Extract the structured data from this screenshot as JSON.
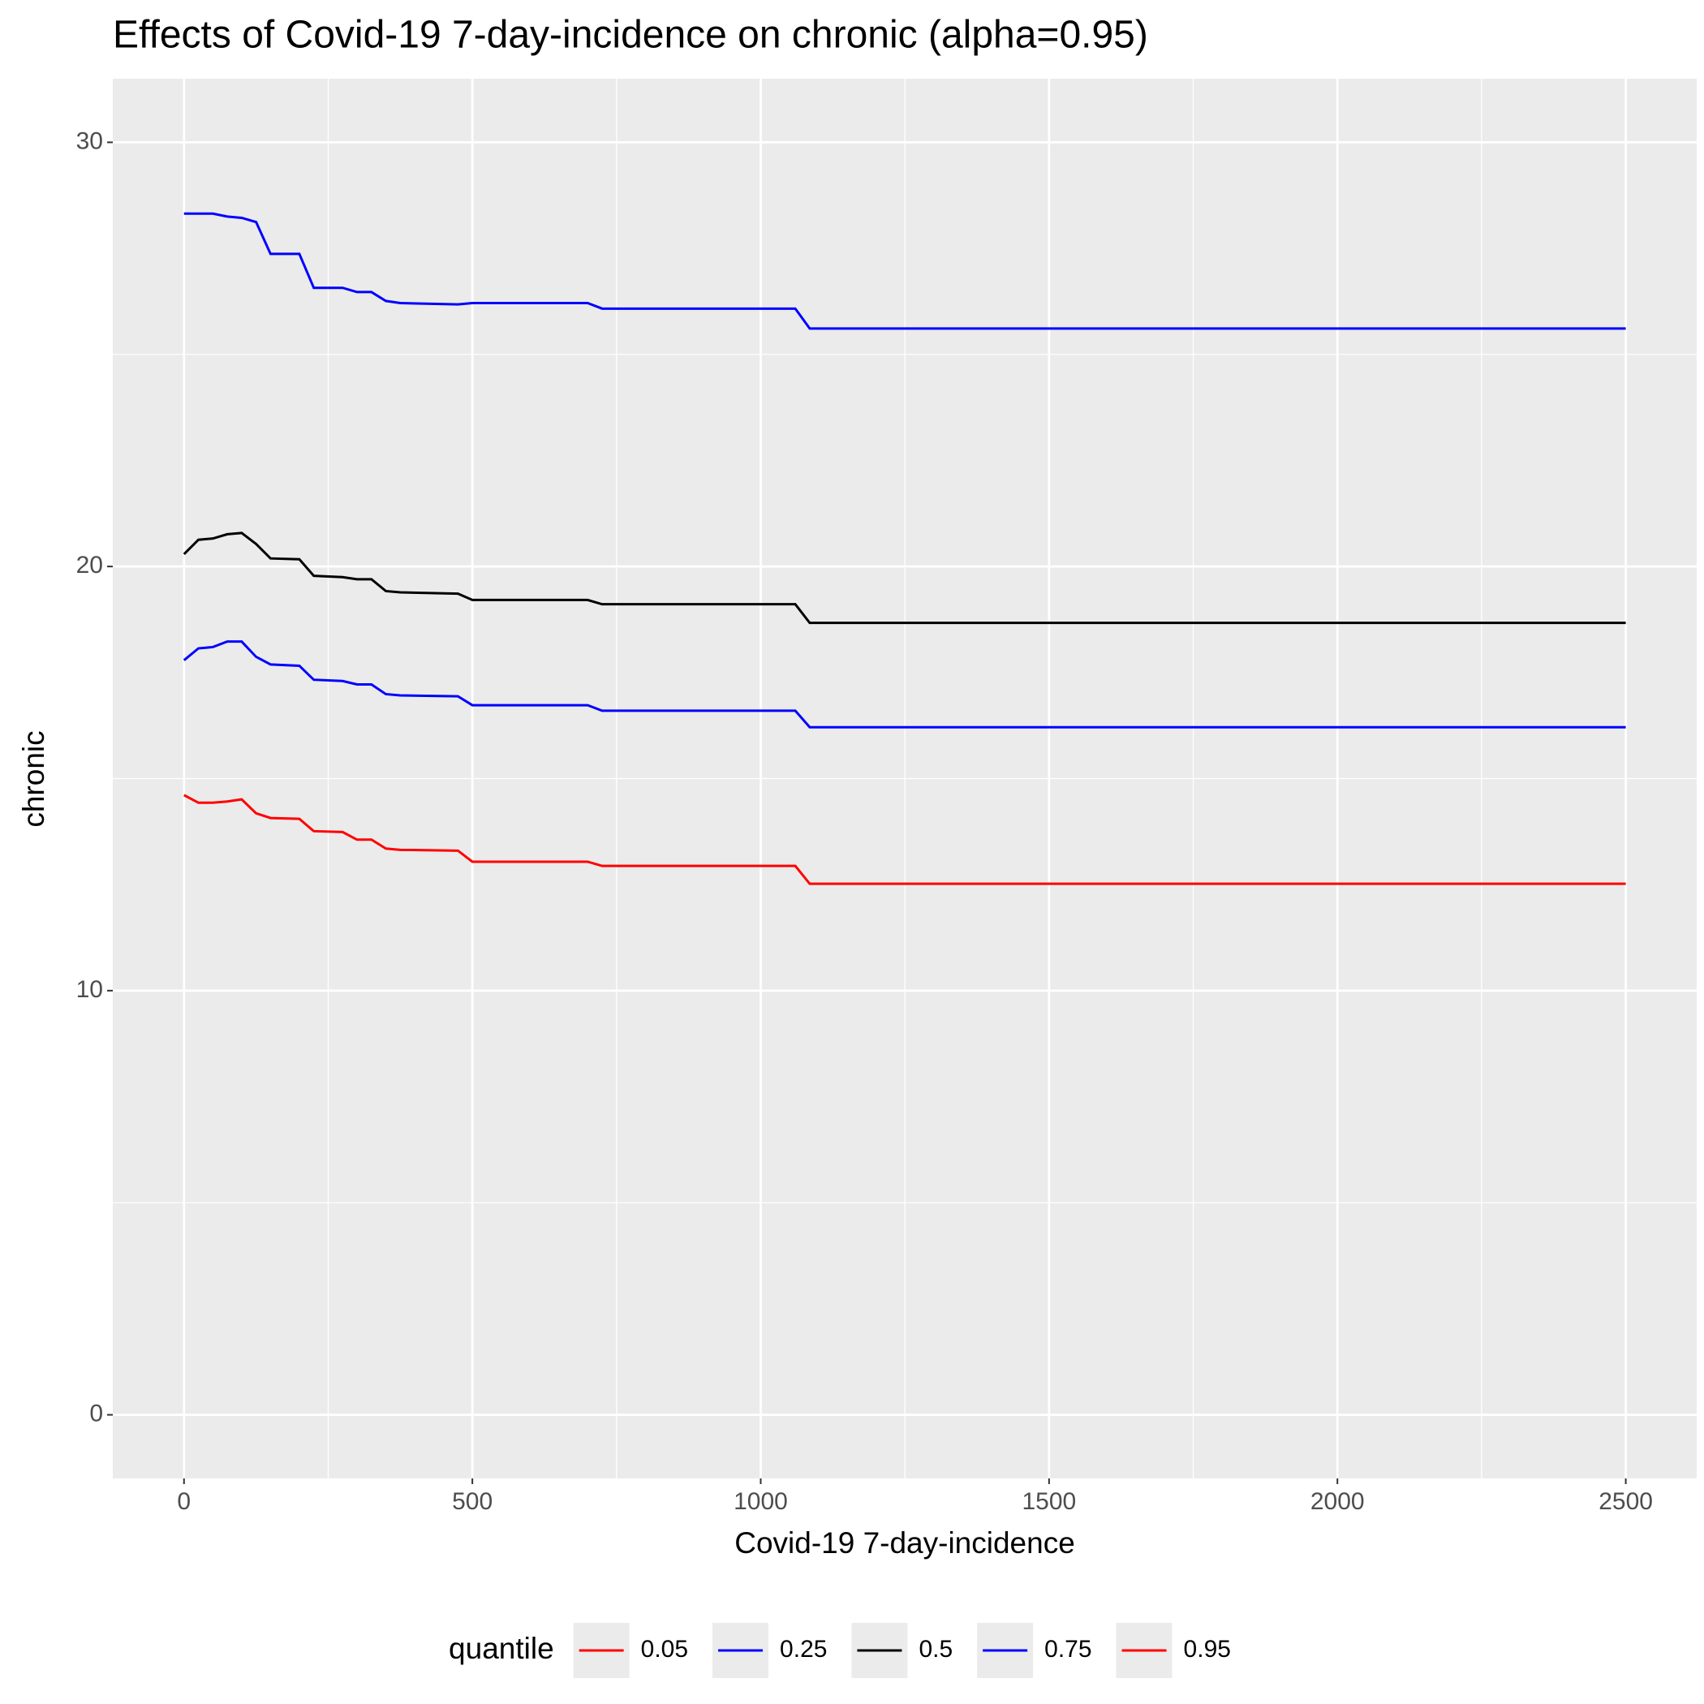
{
  "chart_data": {
    "type": "line",
    "title": "Effects of Covid-19 7-day-incidence on chronic (alpha=0.95)",
    "x_label": "Covid-19 7-day-incidence",
    "y_label": "chronic",
    "legend_title": "quantile",
    "legend_position": "bottom",
    "grid": true,
    "x": [
      0,
      25,
      50,
      75,
      100,
      125,
      150,
      200,
      225,
      275,
      300,
      325,
      350,
      375,
      475,
      500,
      700,
      725,
      1060,
      1085,
      2500
    ],
    "series": [
      {
        "name": "0.05",
        "color": "#ff0000",
        "values": [
          14.61,
          14.43,
          14.43,
          14.46,
          14.51,
          14.18,
          14.07,
          14.05,
          13.76,
          13.74,
          13.56,
          13.56,
          13.35,
          13.32,
          13.3,
          13.04,
          13.04,
          12.94,
          12.94,
          12.52,
          12.52
        ]
      },
      {
        "name": "0.25",
        "color": "#0000ff",
        "values": [
          17.79,
          18.07,
          18.1,
          18.23,
          18.23,
          17.87,
          17.69,
          17.66,
          17.33,
          17.3,
          17.22,
          17.22,
          16.99,
          16.96,
          16.94,
          16.73,
          16.73,
          16.6,
          16.6,
          16.21,
          16.21
        ]
      },
      {
        "name": "0.5",
        "color": "#000000",
        "values": [
          20.29,
          20.63,
          20.66,
          20.76,
          20.79,
          20.53,
          20.19,
          20.17,
          19.78,
          19.75,
          19.7,
          19.7,
          19.42,
          19.39,
          19.36,
          19.21,
          19.21,
          19.11,
          19.11,
          18.67,
          18.67
        ]
      },
      {
        "name": "0.75",
        "color": "#0000ff",
        "values": [
          28.32,
          28.32,
          28.32,
          28.25,
          28.22,
          28.12,
          27.37,
          27.37,
          26.57,
          26.57,
          26.47,
          26.47,
          26.26,
          26.21,
          26.18,
          26.21,
          26.21,
          26.08,
          26.08,
          25.61,
          25.61
        ]
      },
      {
        "name": "0.95",
        "color": "#ff0000",
        "values": [
          null,
          null,
          null,
          null,
          null,
          null,
          null,
          null,
          null,
          null,
          null,
          null,
          null,
          null,
          null,
          null,
          null,
          null,
          null,
          null,
          null
        ]
      }
    ],
    "xlim": [
      -123.5,
      2623
    ],
    "ylim": [
      -1.5,
      31.5
    ],
    "xticks": [
      0,
      500,
      1000,
      1500,
      2000,
      2500
    ],
    "yticks": [
      0,
      10,
      20,
      30
    ]
  }
}
